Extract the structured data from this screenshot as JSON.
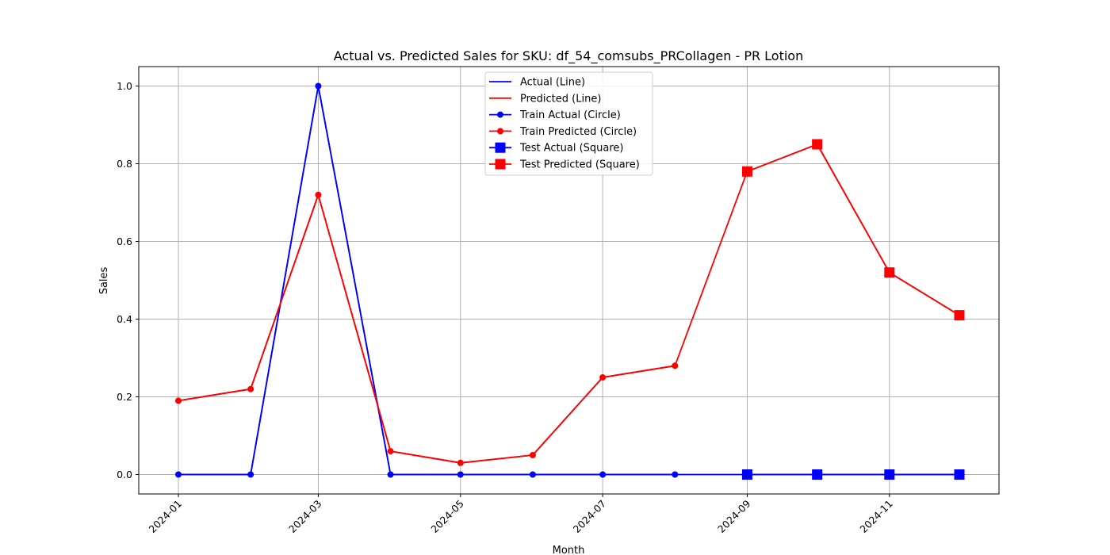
{
  "chart_data": {
    "type": "line",
    "title": "Actual vs. Predicted Sales for SKU: df_54_comsubs_PRCollagen - PR Lotion",
    "xlabel": "Month",
    "ylabel": "Sales",
    "x": [
      "2024-01-01",
      "2024-02-01",
      "2024-03-01",
      "2024-04-01",
      "2024-05-01",
      "2024-06-01",
      "2024-07-01",
      "2024-08-01",
      "2024-09-01",
      "2024-10-01",
      "2024-11-01",
      "2024-12-01"
    ],
    "x_ticks": [
      "2024-01",
      "2024-03",
      "2024-05",
      "2024-07",
      "2024-09",
      "2024-11"
    ],
    "x_tick_dates": [
      "2024-01-01",
      "2024-03-01",
      "2024-05-01",
      "2024-07-01",
      "2024-09-01",
      "2024-11-01"
    ],
    "y_ticks": [
      "0.0",
      "0.2",
      "0.4",
      "0.6",
      "0.8",
      "1.0"
    ],
    "y_tick_values": [
      0.0,
      0.2,
      0.4,
      0.6,
      0.8,
      1.0
    ],
    "xlim": [
      "2023-12-15",
      "2024-12-18"
    ],
    "ylim": [
      -0.05,
      1.05
    ],
    "grid": true,
    "legend_position": "top-center",
    "series": [
      {
        "name": "Actual (Line)",
        "color": "#0000ff",
        "marker": "none",
        "x": [
          "2024-01-01",
          "2024-02-01",
          "2024-03-01",
          "2024-04-01",
          "2024-05-01",
          "2024-06-01",
          "2024-07-01",
          "2024-08-01",
          "2024-09-01",
          "2024-10-01",
          "2024-11-01",
          "2024-12-01"
        ],
        "values": [
          0,
          0,
          1.0,
          0,
          0,
          0,
          0,
          0,
          0,
          0,
          0,
          0
        ]
      },
      {
        "name": "Predicted (Line)",
        "color": "#ff0000",
        "marker": "none",
        "x": [
          "2024-01-01",
          "2024-02-01",
          "2024-03-01",
          "2024-04-01",
          "2024-05-01",
          "2024-06-01",
          "2024-07-01",
          "2024-08-01",
          "2024-09-01",
          "2024-10-01",
          "2024-11-01",
          "2024-12-01"
        ],
        "values": [
          0.19,
          0.22,
          0.72,
          0.06,
          0.03,
          0.05,
          0.25,
          0.28,
          0.78,
          0.85,
          0.52,
          0.41
        ]
      },
      {
        "name": "Train Actual (Circle)",
        "color": "#0000ff",
        "marker": "circle",
        "x": [
          "2024-01-01",
          "2024-02-01",
          "2024-03-01",
          "2024-04-01",
          "2024-05-01",
          "2024-06-01",
          "2024-07-01",
          "2024-08-01"
        ],
        "values": [
          0,
          0,
          1.0,
          0,
          0,
          0,
          0,
          0
        ]
      },
      {
        "name": "Train Predicted (Circle)",
        "color": "#ff0000",
        "marker": "circle",
        "x": [
          "2024-01-01",
          "2024-02-01",
          "2024-03-01",
          "2024-04-01",
          "2024-05-01",
          "2024-06-01",
          "2024-07-01",
          "2024-08-01"
        ],
        "values": [
          0.19,
          0.22,
          0.72,
          0.06,
          0.03,
          0.05,
          0.25,
          0.28
        ]
      },
      {
        "name": "Test Actual (Square)",
        "color": "#0000ff",
        "marker": "square",
        "x": [
          "2024-09-01",
          "2024-10-01",
          "2024-11-01",
          "2024-12-01"
        ],
        "values": [
          0,
          0,
          0,
          0
        ]
      },
      {
        "name": "Test Predicted (Square)",
        "color": "#ff0000",
        "marker": "square",
        "x": [
          "2024-09-01",
          "2024-10-01",
          "2024-11-01",
          "2024-12-01"
        ],
        "values": [
          0.78,
          0.85,
          0.52,
          0.41
        ]
      }
    ]
  }
}
